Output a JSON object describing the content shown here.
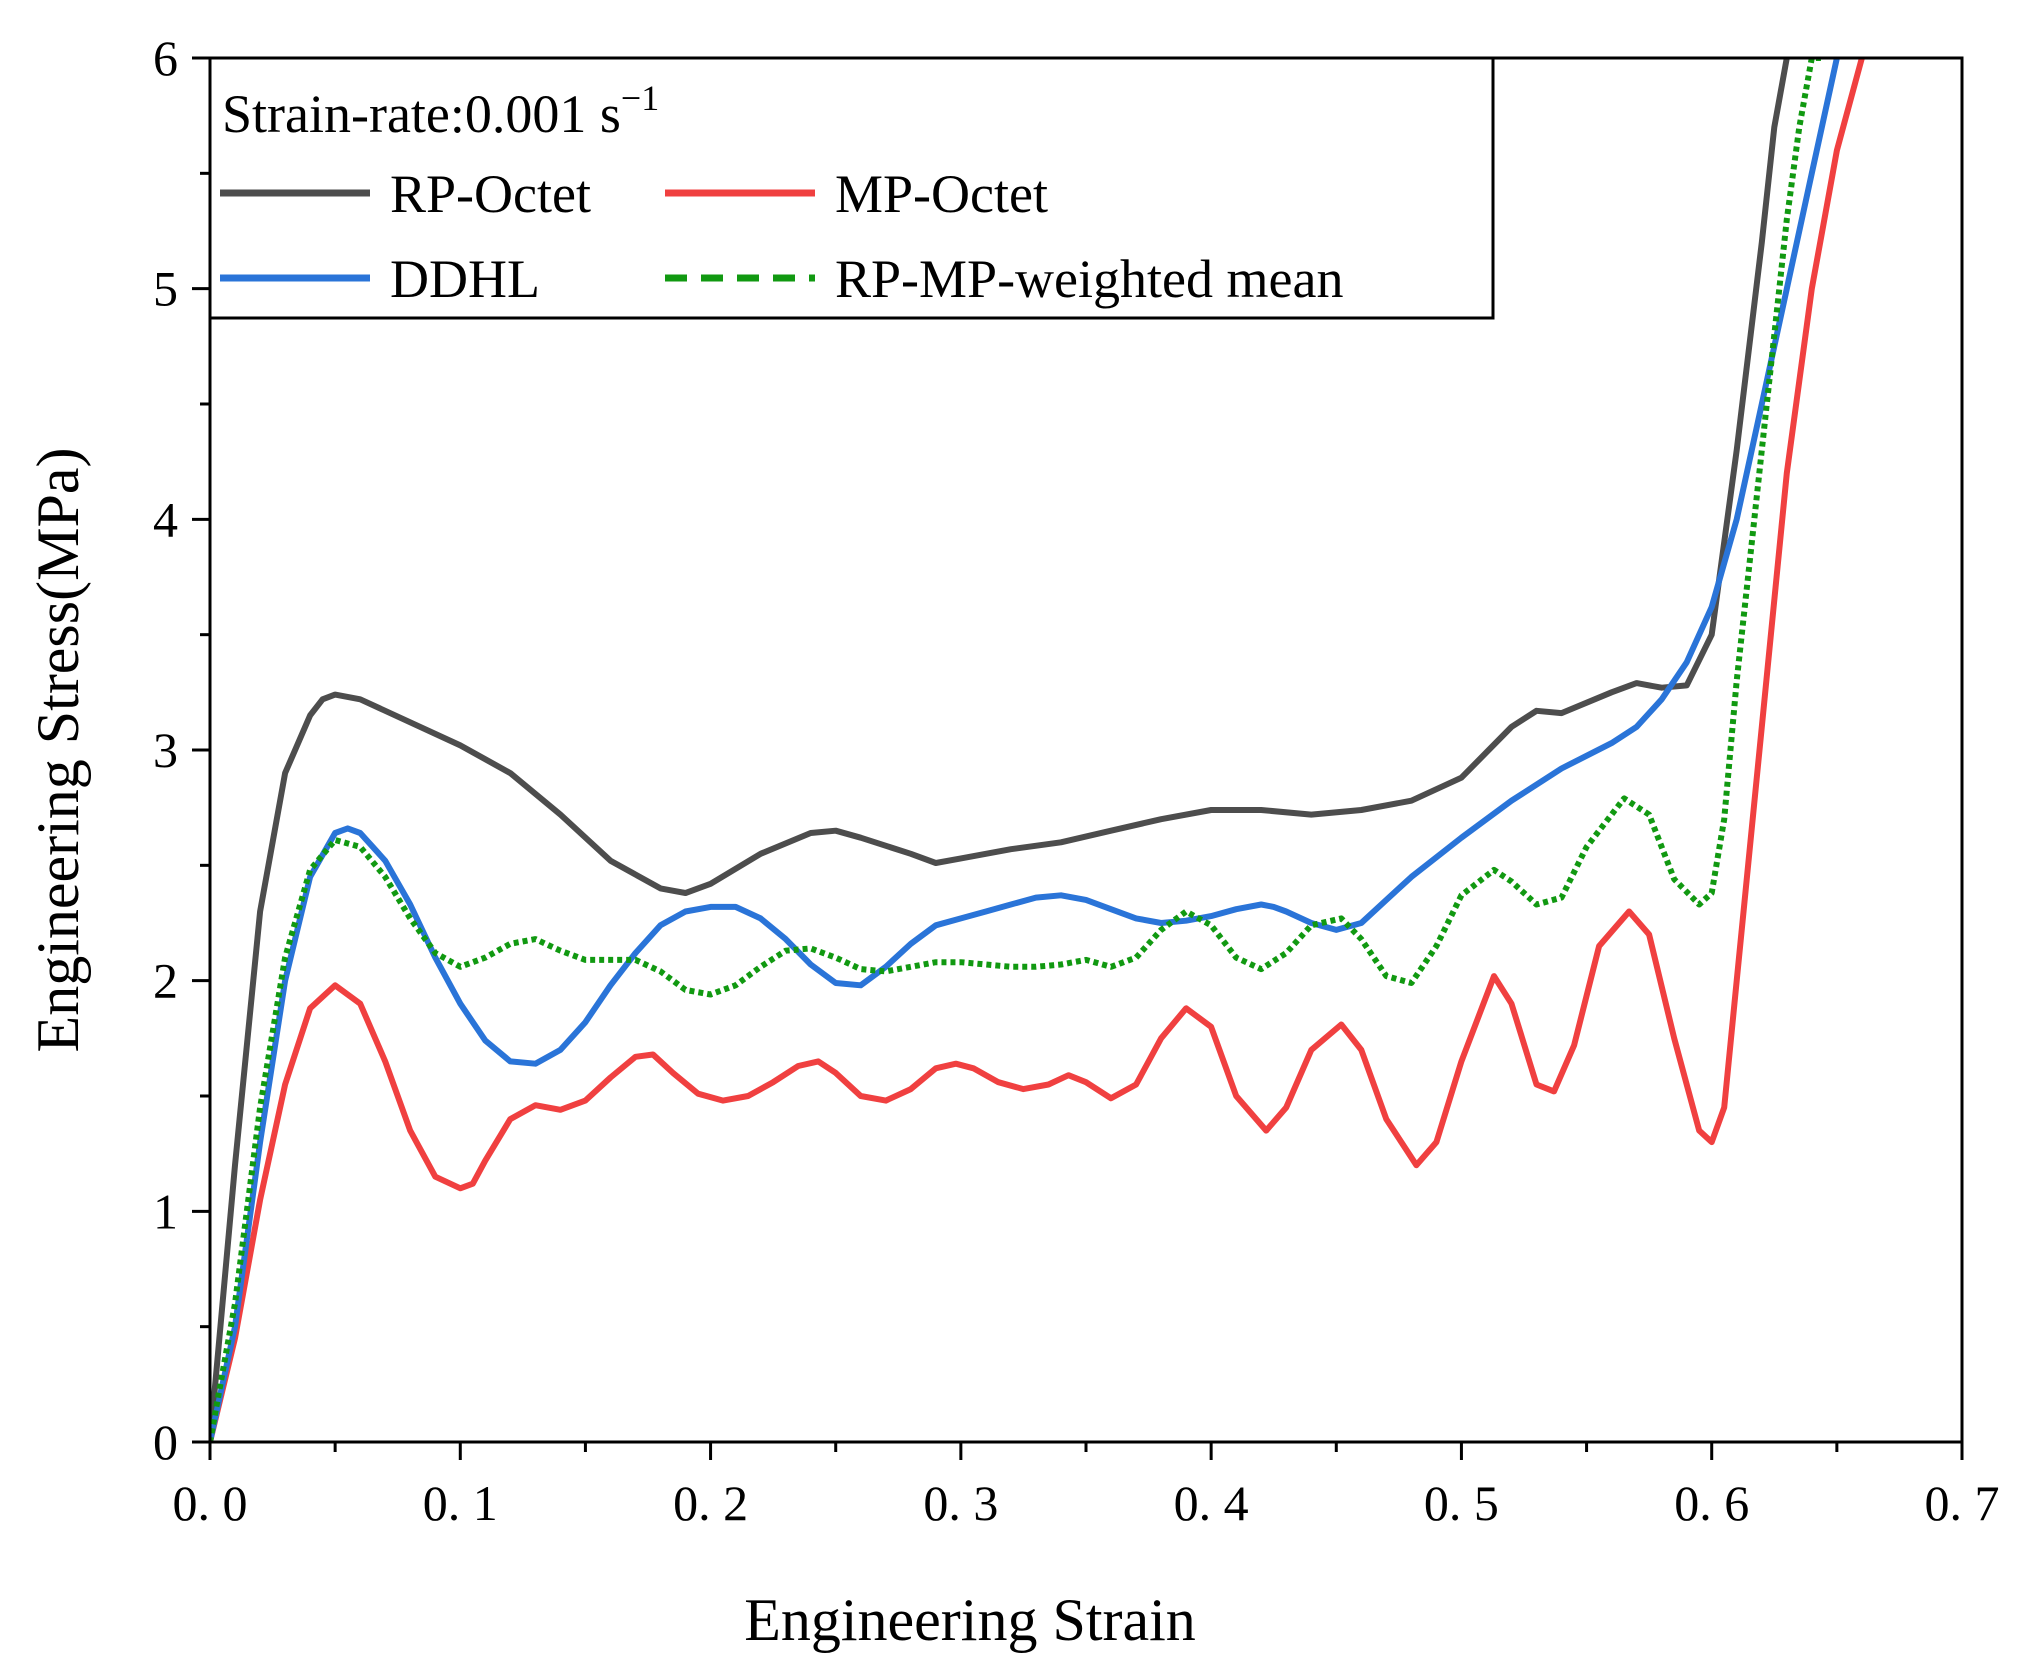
{
  "chart_data": {
    "type": "line",
    "title": "",
    "xlabel": "Engineering Strain",
    "ylabel": "Engineering Stress(MPa)",
    "xlim": [
      0.0,
      0.7
    ],
    "ylim": [
      0,
      6
    ],
    "x_ticks": [
      0.0,
      0.1,
      0.2,
      0.3,
      0.4,
      0.5,
      0.6,
      0.7
    ],
    "x_tick_labels": [
      "0. 0",
      "0. 1",
      "0. 2",
      "0. 3",
      "0. 4",
      "0. 5",
      "0. 6",
      "0. 7"
    ],
    "y_ticks": [
      0,
      1,
      2,
      3,
      4,
      5,
      6
    ],
    "y_tick_labels": [
      "0",
      "1",
      "2",
      "3",
      "4",
      "5",
      "6"
    ],
    "grid": false,
    "legend": {
      "placement": "top-left",
      "title": "Strain-rate:0.001 s",
      "title_superscript": "−1"
    },
    "series": [
      {
        "name": "RP-Octet",
        "color": "#4d4d4d",
        "style": "solid",
        "x": [
          0.0,
          0.01,
          0.02,
          0.03,
          0.04,
          0.045,
          0.05,
          0.06,
          0.08,
          0.1,
          0.12,
          0.14,
          0.16,
          0.18,
          0.19,
          0.2,
          0.22,
          0.24,
          0.25,
          0.26,
          0.28,
          0.29,
          0.3,
          0.32,
          0.34,
          0.36,
          0.38,
          0.4,
          0.42,
          0.44,
          0.46,
          0.48,
          0.5,
          0.52,
          0.53,
          0.54,
          0.56,
          0.57,
          0.58,
          0.59,
          0.6,
          0.61,
          0.62,
          0.625,
          0.63
        ],
        "values": [
          0.0,
          1.2,
          2.3,
          2.9,
          3.15,
          3.22,
          3.24,
          3.22,
          3.12,
          3.02,
          2.9,
          2.72,
          2.52,
          2.4,
          2.38,
          2.42,
          2.55,
          2.64,
          2.65,
          2.62,
          2.55,
          2.51,
          2.53,
          2.57,
          2.6,
          2.65,
          2.7,
          2.74,
          2.74,
          2.72,
          2.74,
          2.78,
          2.88,
          3.1,
          3.17,
          3.16,
          3.25,
          3.29,
          3.27,
          3.28,
          3.5,
          4.3,
          5.2,
          5.7,
          6.0
        ]
      },
      {
        "name": "MP-Octet",
        "color": "#f04040",
        "style": "solid",
        "x": [
          0.0,
          0.01,
          0.02,
          0.03,
          0.04,
          0.05,
          0.06,
          0.07,
          0.08,
          0.09,
          0.1,
          0.105,
          0.11,
          0.12,
          0.13,
          0.14,
          0.15,
          0.16,
          0.17,
          0.177,
          0.185,
          0.195,
          0.205,
          0.215,
          0.225,
          0.235,
          0.243,
          0.25,
          0.26,
          0.27,
          0.28,
          0.29,
          0.298,
          0.305,
          0.315,
          0.325,
          0.335,
          0.343,
          0.35,
          0.36,
          0.37,
          0.38,
          0.39,
          0.4,
          0.41,
          0.422,
          0.43,
          0.44,
          0.452,
          0.46,
          0.47,
          0.482,
          0.49,
          0.5,
          0.513,
          0.52,
          0.53,
          0.537,
          0.545,
          0.555,
          0.567,
          0.575,
          0.585,
          0.595,
          0.6,
          0.605,
          0.61,
          0.62,
          0.63,
          0.64,
          0.65,
          0.66
        ],
        "values": [
          0.0,
          0.45,
          1.05,
          1.55,
          1.88,
          1.98,
          1.9,
          1.65,
          1.35,
          1.15,
          1.1,
          1.12,
          1.22,
          1.4,
          1.46,
          1.44,
          1.48,
          1.58,
          1.67,
          1.68,
          1.6,
          1.51,
          1.48,
          1.5,
          1.56,
          1.63,
          1.65,
          1.6,
          1.5,
          1.48,
          1.53,
          1.62,
          1.64,
          1.62,
          1.56,
          1.53,
          1.55,
          1.59,
          1.56,
          1.49,
          1.55,
          1.75,
          1.88,
          1.8,
          1.5,
          1.35,
          1.45,
          1.7,
          1.81,
          1.7,
          1.4,
          1.2,
          1.3,
          1.65,
          2.02,
          1.9,
          1.55,
          1.52,
          1.72,
          2.15,
          2.3,
          2.2,
          1.75,
          1.35,
          1.3,
          1.45,
          2.0,
          3.1,
          4.2,
          5.0,
          5.6,
          6.0
        ]
      },
      {
        "name": "DDHL",
        "color": "#2a74d8",
        "style": "solid",
        "x": [
          0.0,
          0.01,
          0.02,
          0.03,
          0.04,
          0.05,
          0.055,
          0.06,
          0.07,
          0.08,
          0.09,
          0.1,
          0.11,
          0.12,
          0.13,
          0.14,
          0.15,
          0.16,
          0.17,
          0.18,
          0.19,
          0.2,
          0.21,
          0.22,
          0.23,
          0.24,
          0.25,
          0.26,
          0.27,
          0.28,
          0.29,
          0.3,
          0.31,
          0.32,
          0.33,
          0.34,
          0.35,
          0.36,
          0.37,
          0.38,
          0.39,
          0.4,
          0.41,
          0.42,
          0.425,
          0.43,
          0.44,
          0.45,
          0.46,
          0.47,
          0.48,
          0.5,
          0.52,
          0.54,
          0.56,
          0.57,
          0.58,
          0.59,
          0.6,
          0.61,
          0.62,
          0.63,
          0.64,
          0.65
        ],
        "values": [
          0.0,
          0.5,
          1.3,
          2.0,
          2.45,
          2.64,
          2.66,
          2.64,
          2.52,
          2.33,
          2.1,
          1.9,
          1.74,
          1.65,
          1.64,
          1.7,
          1.82,
          1.98,
          2.12,
          2.24,
          2.3,
          2.32,
          2.32,
          2.27,
          2.18,
          2.07,
          1.99,
          1.98,
          2.06,
          2.16,
          2.24,
          2.27,
          2.3,
          2.33,
          2.36,
          2.37,
          2.35,
          2.31,
          2.27,
          2.25,
          2.26,
          2.28,
          2.31,
          2.33,
          2.32,
          2.3,
          2.25,
          2.22,
          2.25,
          2.35,
          2.45,
          2.62,
          2.78,
          2.92,
          3.03,
          3.1,
          3.22,
          3.38,
          3.62,
          4.0,
          4.5,
          5.0,
          5.5,
          6.0
        ]
      },
      {
        "name": "RP-MP-weighted mean",
        "color": "#119911",
        "style": "dashed",
        "x": [
          0.0,
          0.01,
          0.02,
          0.03,
          0.04,
          0.05,
          0.06,
          0.07,
          0.08,
          0.09,
          0.1,
          0.11,
          0.12,
          0.13,
          0.14,
          0.15,
          0.16,
          0.17,
          0.18,
          0.19,
          0.2,
          0.21,
          0.22,
          0.23,
          0.24,
          0.25,
          0.26,
          0.27,
          0.28,
          0.29,
          0.3,
          0.31,
          0.32,
          0.33,
          0.34,
          0.35,
          0.36,
          0.37,
          0.38,
          0.39,
          0.4,
          0.41,
          0.42,
          0.43,
          0.44,
          0.452,
          0.46,
          0.47,
          0.48,
          0.49,
          0.5,
          0.513,
          0.52,
          0.53,
          0.54,
          0.55,
          0.565,
          0.575,
          0.585,
          0.595,
          0.6,
          0.605,
          0.61,
          0.615,
          0.62,
          0.625,
          0.63,
          0.635,
          0.64,
          0.645
        ],
        "values": [
          0.0,
          0.6,
          1.45,
          2.1,
          2.48,
          2.61,
          2.58,
          2.45,
          2.27,
          2.12,
          2.06,
          2.1,
          2.16,
          2.18,
          2.13,
          2.09,
          2.09,
          2.09,
          2.04,
          1.96,
          1.94,
          1.98,
          2.06,
          2.13,
          2.14,
          2.1,
          2.05,
          2.04,
          2.06,
          2.08,
          2.08,
          2.07,
          2.06,
          2.06,
          2.07,
          2.09,
          2.06,
          2.1,
          2.22,
          2.3,
          2.24,
          2.1,
          2.05,
          2.12,
          2.24,
          2.27,
          2.18,
          2.02,
          1.99,
          2.15,
          2.37,
          2.48,
          2.43,
          2.33,
          2.36,
          2.58,
          2.79,
          2.72,
          2.44,
          2.33,
          2.38,
          2.7,
          3.3,
          3.8,
          4.3,
          4.8,
          5.3,
          5.7,
          6.0,
          6.0
        ]
      }
    ]
  }
}
